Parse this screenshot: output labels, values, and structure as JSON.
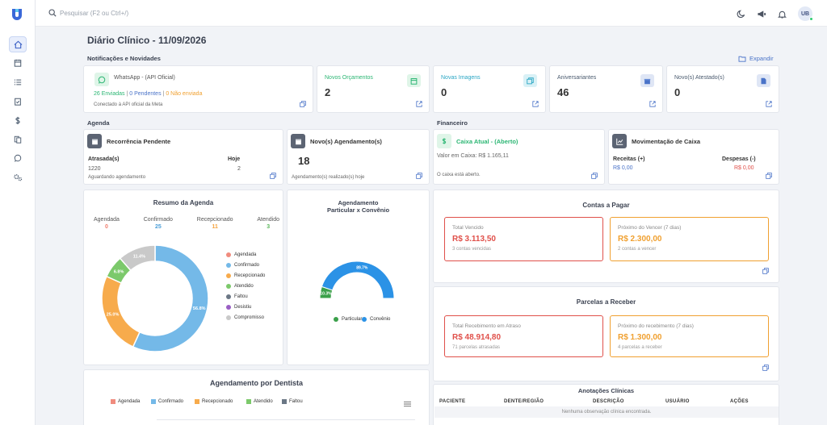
{
  "topbar": {
    "search_placeholder": "Pesquisar (F2 ou Ctrl+/)",
    "avatar_initials": "UB"
  },
  "page": {
    "title": "Diário Clínico - 11/09/2026"
  },
  "notifications": {
    "label": "Notificações e Novidades",
    "expand_label": "Expandir",
    "whatsapp": {
      "title": "WhatsApp - (API Oficial)",
      "sent": "26 Enviadas",
      "pending": "0 Pendentes",
      "not_sent": "0 Não enviada",
      "sep": "|",
      "status": "Conectado à API oficial da Meta"
    },
    "stats": [
      {
        "title": "Novos Orçamentos",
        "value": "2",
        "title_color": "#2bb673",
        "icon": "calendar-icon",
        "icon_bg": "#dff5e8",
        "icon_color": "#2bb673"
      },
      {
        "title": "Novas Imagens",
        "value": "0",
        "title_color": "#2aa6c4",
        "icon": "images-icon",
        "icon_bg": "#d9f1f6",
        "icon_color": "#2aa6c4"
      },
      {
        "title": "Aniversariantes",
        "value": "46",
        "title_color": "#4a5a6e",
        "icon": "gift-icon",
        "icon_bg": "#dfe6f5",
        "icon_color": "#4a73c8"
      },
      {
        "title": "Novo(s) Atestado(s)",
        "value": "0",
        "title_color": "#4a5a6e",
        "icon": "document-icon",
        "icon_bg": "#dfe6f5",
        "icon_color": "#4a73c8"
      }
    ]
  },
  "agenda": {
    "label": "Agenda",
    "recorrencia": {
      "title": "Recorrência Pendente",
      "col1_label": "Atrasada(s)",
      "col1_value": "1220",
      "col2_label": "Hoje",
      "col2_value": "2",
      "footer": "Aguardando agendamento"
    },
    "novos": {
      "title": "Novo(s) Agendamento(s)",
      "value": "18",
      "footer": "Agendamento(s) realizado(s) hoje"
    }
  },
  "financeiro": {
    "label": "Financeiro",
    "caixa": {
      "title": "Caixa Atual - (Aberto)",
      "valor": "Valor em Caixa: R$ 1.165,11",
      "status": "O caixa está aberto."
    },
    "movimentacao": {
      "title": "Movimentação de Caixa",
      "receitas_label": "Receitas (+)",
      "receitas_value": "R$ 0,00",
      "despesas_label": "Despesas (-)",
      "despesas_value": "R$ 0,00"
    }
  },
  "resumo": {
    "title": "Resumo da Agenda",
    "counts": [
      {
        "label": "Agendada",
        "value": "0",
        "color": "#f07e6e"
      },
      {
        "label": "Confirmado",
        "value": "25",
        "color": "#4a9ed8"
      },
      {
        "label": "Recepcionado",
        "value": "11",
        "color": "#f5a340"
      },
      {
        "label": "Atendido",
        "value": "3",
        "color": "#5cb85c"
      }
    ]
  },
  "chart_data": [
    {
      "type": "pie",
      "title": "Resumo da Agenda",
      "legend_position": "right",
      "slices": [
        {
          "name": "Agendada",
          "value": 0,
          "label": "",
          "color": "#f08c7e"
        },
        {
          "name": "Confirmado",
          "value": 56.8,
          "label": "56.8%",
          "color": "#74b9e8"
        },
        {
          "name": "Recepcionado",
          "value": 25.0,
          "label": "25.0%",
          "color": "#f7ab4c"
        },
        {
          "name": "Atendido",
          "value": 6.8,
          "label": "6.8%",
          "color": "#7cc96b"
        },
        {
          "name": "Faltou",
          "value": 0,
          "label": "",
          "color": "#6b7785"
        },
        {
          "name": "Desistiu",
          "value": 0,
          "label": "",
          "color": "#9a5fc4"
        },
        {
          "name": "Compromisso",
          "value": 11.4,
          "label": "11.4%",
          "color": "#c9c9c9"
        }
      ]
    },
    {
      "type": "pie",
      "title": "Agendamento Particular x Convênio",
      "title_line1": "Agendamento",
      "title_line2": "Particular x Convênio",
      "legend_position": "bottom",
      "slices": [
        {
          "name": "Particular",
          "value": 10.3,
          "label": "10.3%",
          "color": "#3aa04a"
        },
        {
          "name": "Convênio",
          "value": 89.7,
          "label": "89.7%",
          "color": "#2b92e6"
        }
      ]
    },
    {
      "type": "bar",
      "title": "Agendamento por Dentista",
      "legend_position": "top",
      "series": [
        {
          "name": "Agendada",
          "color": "#f08c7e"
        },
        {
          "name": "Confirmado",
          "color": "#74b9e8"
        },
        {
          "name": "Recepcionado",
          "color": "#f7ab4c"
        },
        {
          "name": "Atendido",
          "color": "#7cc96b"
        },
        {
          "name": "Faltou",
          "color": "#6b7785"
        }
      ]
    }
  ],
  "contas_pagar": {
    "title": "Contas a Pagar",
    "vencido": {
      "label": "Total Vencido",
      "value": "R$ 3.113,50",
      "sub": "3 contas vencidas",
      "color": "#e0504a"
    },
    "proximo": {
      "label": "Próximo do Vencer (7 dias)",
      "value": "R$ 2.300,00",
      "sub": "2 contas a vencer",
      "color": "#f0a030"
    }
  },
  "parcelas": {
    "title": "Parcelas a Receber",
    "atraso": {
      "label": "Total Recebimento em Atraso",
      "value": "R$ 48.914,80",
      "sub": "71 parcelas atrasadas",
      "color": "#e0504a"
    },
    "proximo": {
      "label": "Próximo do recebimento (7 dias)",
      "value": "R$ 1.300,00",
      "sub": "4 parcelas a receber",
      "color": "#f0a030"
    }
  },
  "anotacoes": {
    "title": "Anotações Clínicas",
    "columns": [
      "PACIENTE",
      "DENTE/REGIÃO",
      "DESCRIÇÃO",
      "USUÁRIO",
      "AÇÕES"
    ],
    "empty": "Nenhuma observação clínica encontrada."
  }
}
